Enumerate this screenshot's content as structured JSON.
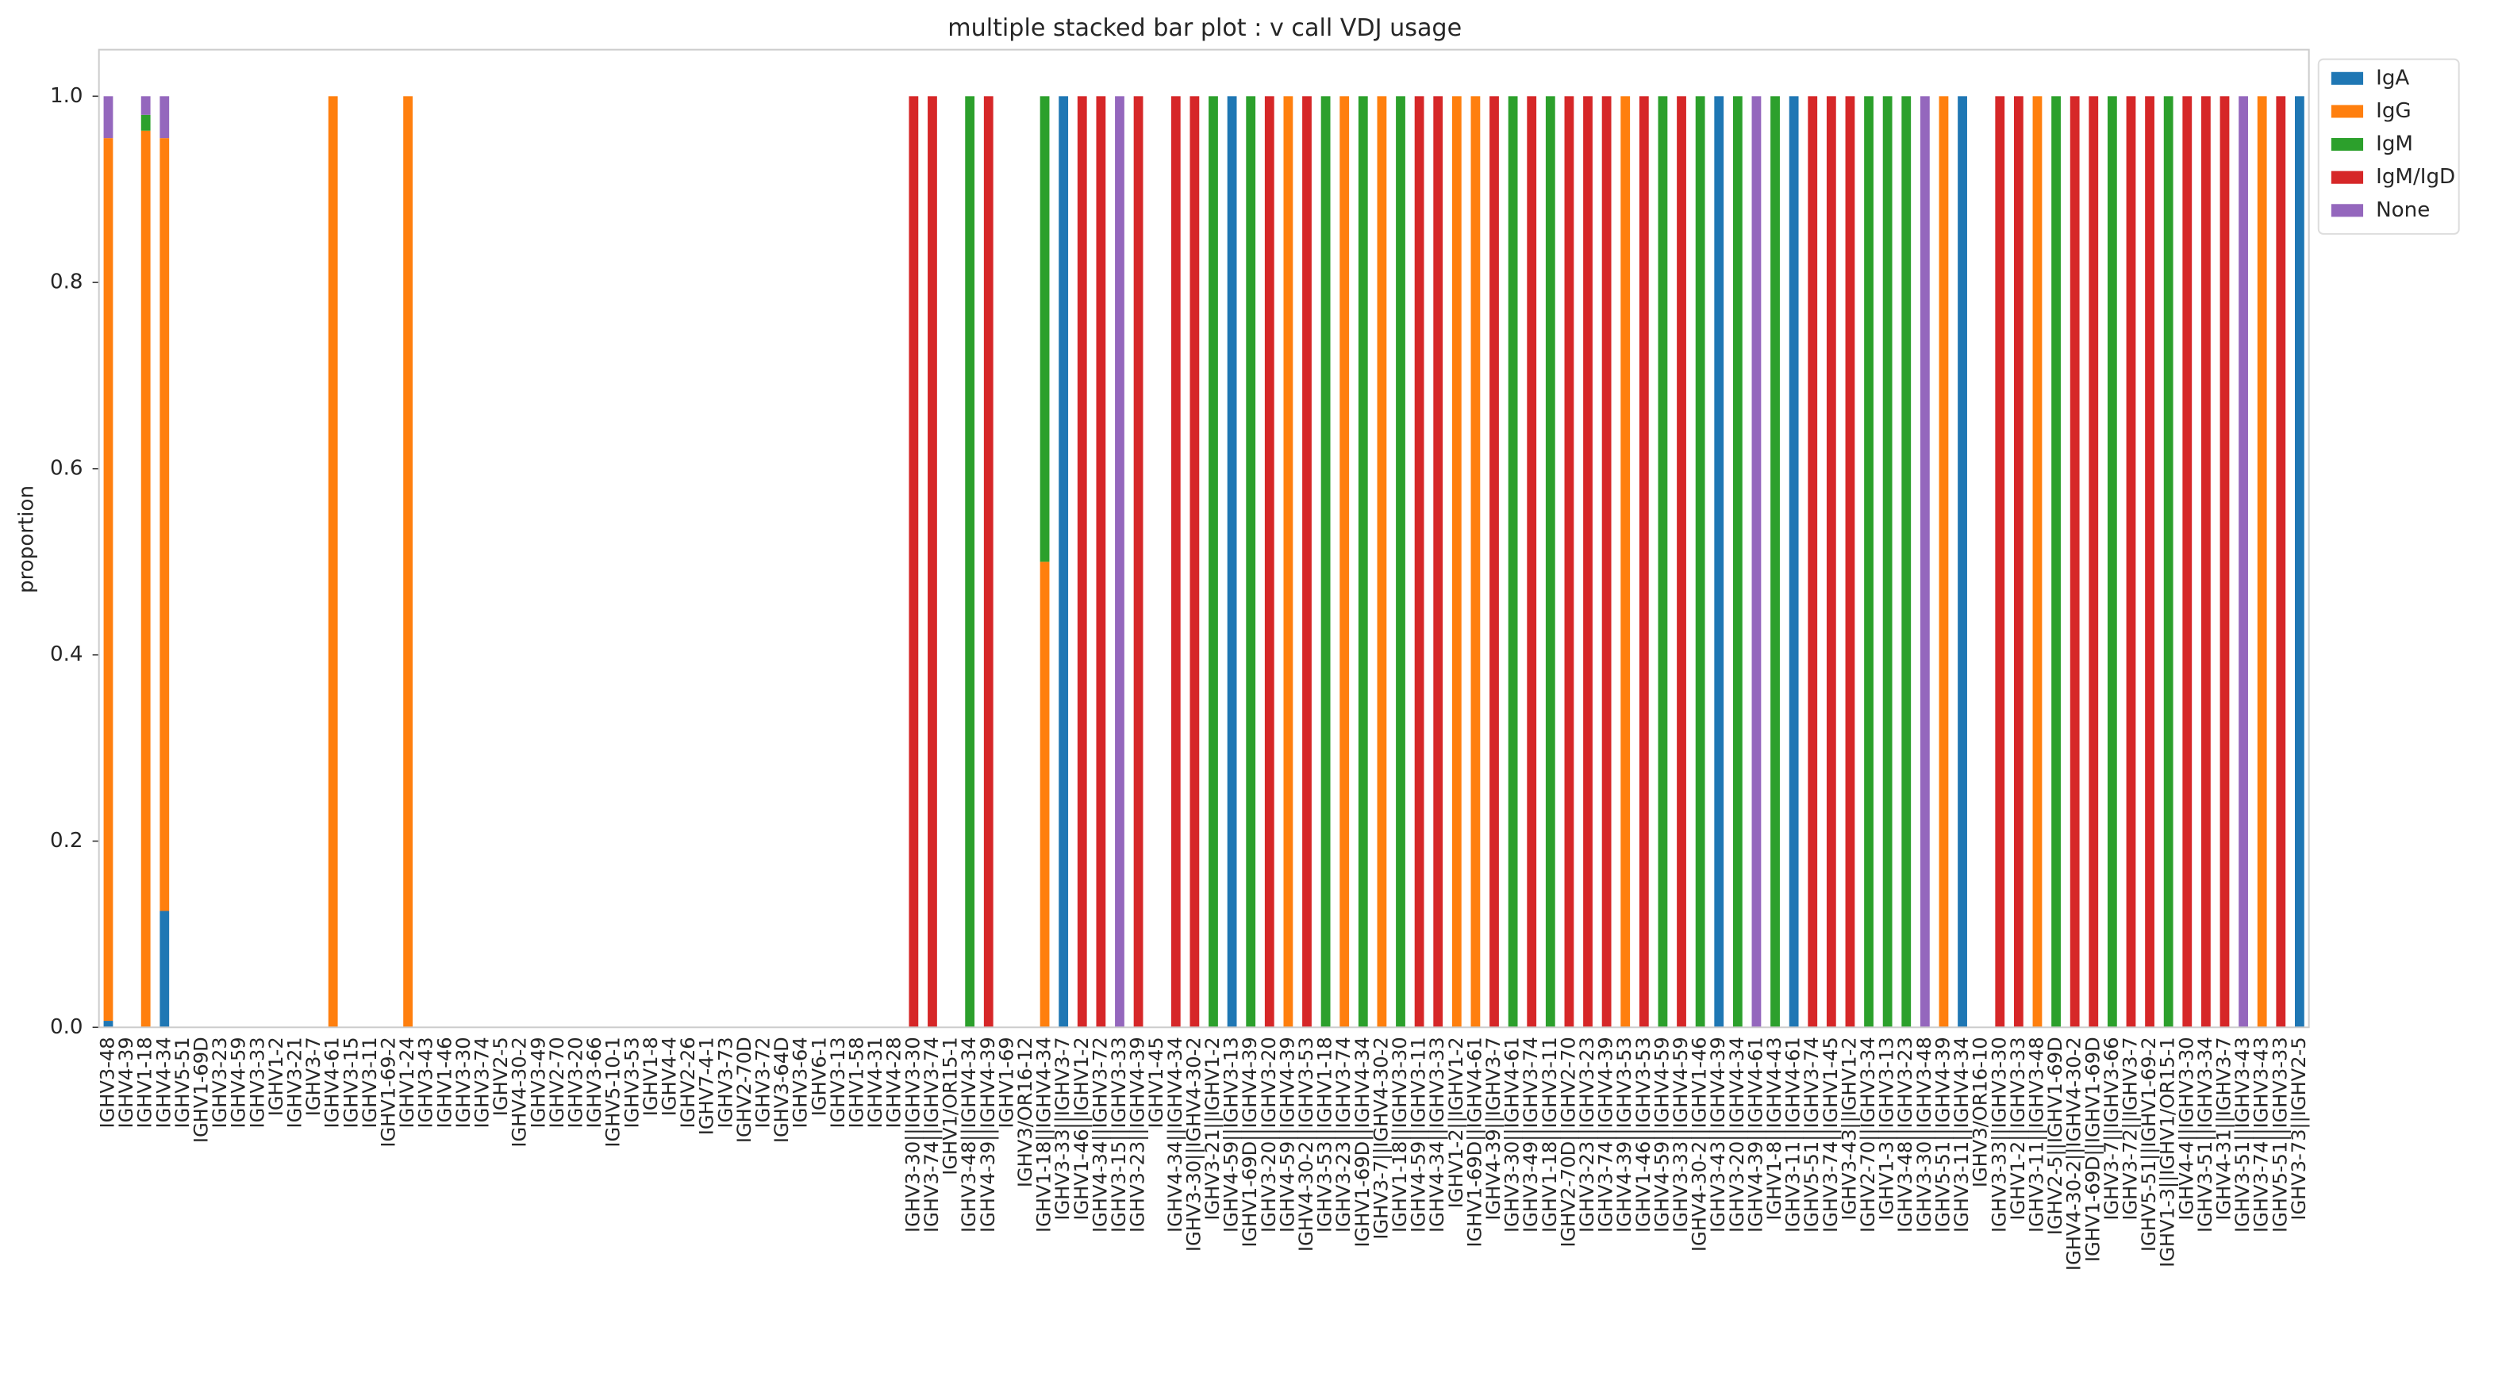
{
  "chart_data": {
    "type": "stacked_bar",
    "title": "multiple stacked bar plot : v call VDJ usage",
    "ylabel": "proportion",
    "ylim": [
      0,
      1.05
    ],
    "yticks": [
      {
        "value": 0,
        "label": "0.0"
      },
      {
        "value": 0.2,
        "label": "0.2"
      },
      {
        "value": 0.4,
        "label": "0.4"
      },
      {
        "value": 0.6,
        "label": "0.6"
      },
      {
        "value": 0.8,
        "label": "0.8"
      },
      {
        "value": 1,
        "label": "1.0"
      }
    ],
    "grid": false,
    "legend": "outside upper right",
    "categories": [
      "IGHV3-48",
      "IGHV4-39",
      "IGHV1-18",
      "IGHV4-34",
      "IGHV5-51",
      "IGHV1-69D",
      "IGHV3-23",
      "IGHV4-59",
      "IGHV3-33",
      "IGHV1-2",
      "IGHV3-21",
      "IGHV3-7",
      "IGHV4-61",
      "IGHV3-15",
      "IGHV3-11",
      "IGHV1-69-2",
      "IGHV1-24",
      "IGHV3-43",
      "IGHV1-46",
      "IGHV3-30",
      "IGHV3-74",
      "IGHV2-5",
      "IGHV4-30-2",
      "IGHV3-49",
      "IGHV2-70",
      "IGHV3-20",
      "IGHV3-66",
      "IGHV5-10-1",
      "IGHV3-53",
      "IGHV1-8",
      "IGHV4-4",
      "IGHV2-26",
      "IGHV7-4-1",
      "IGHV3-73",
      "IGHV2-70D",
      "IGHV3-72",
      "IGHV3-64D",
      "IGHV3-64",
      "IGHV6-1",
      "IGHV3-13",
      "IGHV1-58",
      "IGHV4-31",
      "IGHV4-28",
      "IGHV3-30||IGHV3-30",
      "IGHV3-74||IGHV3-74",
      "IGHV1/OR15-1",
      "IGHV3-48||IGHV4-34",
      "IGHV4-39||IGHV4-39",
      "IGHV1-69",
      "IGHV3/OR16-12",
      "IGHV1-18||IGHV4-34",
      "IGHV3-33||IGHV3-7",
      "IGHV1-46||IGHV1-2",
      "IGHV4-34||IGHV3-72",
      "IGHV3-15||IGHV3-33",
      "IGHV3-23||IGHV4-39",
      "IGHV1-45",
      "IGHV4-34||IGHV4-34",
      "IGHV3-30||IGHV4-30-2",
      "IGHV3-21||IGHV1-2",
      "IGHV4-59||IGHV3-13",
      "IGHV1-69D||IGHV4-39",
      "IGHV3-20||IGHV3-20",
      "IGHV4-59||IGHV4-39",
      "IGHV4-30-2||IGHV3-53",
      "IGHV3-53||IGHV1-18",
      "IGHV3-23||IGHV3-74",
      "IGHV1-69D||IGHV4-34",
      "IGHV3-7||IGHV4-30-2",
      "IGHV1-18||IGHV3-30",
      "IGHV4-59||IGHV3-11",
      "IGHV4-34||IGHV3-33",
      "IGHV1-2||IGHV1-2",
      "IGHV1-69D||IGHV4-61",
      "IGHV4-39||IGHV3-7",
      "IGHV3-30||IGHV4-61",
      "IGHV3-49||IGHV3-74",
      "IGHV1-18||IGHV3-11",
      "IGHV2-70D||IGHV2-70",
      "IGHV3-23||IGHV3-23",
      "IGHV3-74||IGHV4-39",
      "IGHV4-39||IGHV3-53",
      "IGHV1-46||IGHV3-53",
      "IGHV4-59||IGHV4-59",
      "IGHV3-33||IGHV4-59",
      "IGHV4-30-2||IGHV1-46",
      "IGHV3-43||IGHV4-39",
      "IGHV3-20||IGHV4-34",
      "IGHV4-39||IGHV4-61",
      "IGHV1-8||IGHV4-43",
      "IGHV3-11||IGHV4-61",
      "IGHV5-51||IGHV3-74",
      "IGHV3-74||IGHV1-45",
      "IGHV3-43||IGHV1-2",
      "IGHV2-70||IGHV3-34",
      "IGHV1-3||IGHV3-13",
      "IGHV3-48||IGHV3-23",
      "IGHV3-30||IGHV3-48",
      "IGHV5-51||IGHV4-39",
      "IGHV3-11||IGHV4-34",
      "IGHV3/OR16-10",
      "IGHV3-33||IGHV3-30",
      "IGHV1-2||IGHV3-33",
      "IGHV3-11||IGHV3-48",
      "IGHV2-5||IGHV1-69D",
      "IGHV4-30-2||IGHV4-30-2",
      "IGHV1-69D||IGHV1-69D",
      "IGHV3-7||IGHV3-66",
      "IGHV3-72||IGHV3-7",
      "IGHV5-51||IGHV1-69-2",
      "IGHV1-3||IGHV1/OR15-1",
      "IGHV4-4||IGHV3-30",
      "IGHV3-51||IGHV3-34",
      "IGHV4-31||IGHV3-7",
      "IGHV3-51||IGHV3-43",
      "IGHV3-74||IGHV3-43",
      "IGHV5-51||IGHV3-33",
      "IGHV3-73||IGHV2-5"
    ],
    "series": [
      {
        "name": "IgA",
        "color": "#1f77b4",
        "values": [
          0.007,
          0,
          0,
          0.125,
          0,
          0,
          0,
          0,
          0,
          0,
          0,
          0,
          0,
          0,
          0,
          0,
          0,
          0,
          0,
          0,
          0,
          0,
          0,
          0,
          0,
          0,
          0,
          0,
          0,
          0,
          0,
          0,
          0,
          0,
          0,
          0,
          0,
          0,
          0,
          0,
          0,
          0,
          0,
          0,
          0,
          0,
          0,
          0,
          0,
          0,
          0,
          1,
          0,
          0,
          0,
          0,
          0,
          0,
          0,
          0,
          1,
          0,
          0,
          0,
          0,
          0,
          0,
          0,
          0,
          0,
          0,
          0,
          0,
          0,
          0,
          0,
          0,
          0,
          0,
          0,
          0,
          0,
          0,
          0,
          0,
          0,
          1,
          0,
          0,
          0,
          1,
          0,
          0,
          0,
          0,
          0,
          0,
          0,
          0,
          1,
          0,
          0,
          0,
          0,
          0,
          0,
          0,
          0,
          0,
          0,
          0,
          0,
          0,
          0,
          0,
          0,
          0,
          1
        ]
      },
      {
        "name": "IgG",
        "color": "#ff7f0e",
        "values": [
          0.948,
          0,
          0.963,
          0.83,
          0,
          0,
          0,
          0,
          0,
          0,
          0,
          0,
          1,
          0,
          0,
          0,
          1,
          0,
          0,
          0,
          0,
          0,
          0,
          0,
          0,
          0,
          0,
          0,
          0,
          0,
          0,
          0,
          0,
          0,
          0,
          0,
          0,
          0,
          0,
          0,
          0,
          0,
          0,
          0,
          0,
          0,
          0,
          0,
          0,
          0,
          0.5,
          0,
          0,
          0,
          0,
          0,
          0,
          0,
          0,
          0,
          0,
          0,
          0,
          1,
          0,
          0,
          1,
          0,
          1,
          0,
          0,
          0,
          1,
          1,
          0,
          0,
          0,
          0,
          0,
          0,
          0,
          1,
          0,
          0,
          0,
          0,
          0,
          0,
          0,
          0,
          0,
          0,
          0,
          0,
          0,
          0,
          0,
          0,
          1,
          0,
          0,
          0,
          0,
          1,
          0,
          0,
          0,
          0,
          0,
          0,
          0,
          0,
          0,
          0,
          0,
          1,
          0,
          0
        ]
      },
      {
        "name": "IgM",
        "color": "#2ca02c",
        "values": [
          0,
          0,
          0.017,
          0,
          0,
          0,
          0,
          0,
          0,
          0,
          0,
          0,
          0,
          0,
          0,
          0,
          0,
          0,
          0,
          0,
          0,
          0,
          0,
          0,
          0,
          0,
          0,
          0,
          0,
          0,
          0,
          0,
          0,
          0,
          0,
          0,
          0,
          0,
          0,
          0,
          0,
          0,
          0,
          0,
          0,
          0,
          1,
          0,
          0,
          0,
          0.5,
          0,
          0,
          0,
          0,
          0,
          0,
          0,
          0,
          1,
          0,
          1,
          0,
          0,
          0,
          1,
          0,
          1,
          0,
          1,
          0,
          0,
          0,
          0,
          0,
          1,
          0,
          1,
          0,
          0,
          0,
          0,
          0,
          1,
          0,
          1,
          0,
          1,
          0,
          1,
          0,
          0,
          0,
          0,
          1,
          1,
          1,
          0,
          0,
          0,
          0,
          0,
          0,
          0,
          1,
          0,
          0,
          1,
          0,
          0,
          1,
          0,
          0,
          0,
          0,
          0,
          0,
          0
        ]
      },
      {
        "name": "IgM/IgD",
        "color": "#d62728",
        "values": [
          0,
          0,
          0,
          0,
          0,
          0,
          0,
          0,
          0,
          0,
          0,
          0,
          0,
          0,
          0,
          0,
          0,
          0,
          0,
          0,
          0,
          0,
          0,
          0,
          0,
          0,
          0,
          0,
          0,
          0,
          0,
          0,
          0,
          0,
          0,
          0,
          0,
          0,
          0,
          0,
          0,
          0,
          0,
          1,
          1,
          0,
          0,
          1,
          0,
          0,
          0,
          0,
          1,
          1,
          0,
          1,
          0,
          1,
          1,
          0,
          0,
          0,
          1,
          0,
          1,
          0,
          0,
          0,
          0,
          0,
          1,
          1,
          0,
          0,
          1,
          0,
          1,
          0,
          1,
          1,
          1,
          0,
          1,
          0,
          1,
          0,
          0,
          0,
          0,
          0,
          0,
          1,
          1,
          1,
          0,
          0,
          0,
          0,
          0,
          0,
          0,
          1,
          1,
          0,
          0,
          1,
          1,
          0,
          1,
          1,
          0,
          1,
          1,
          1,
          0,
          0,
          1,
          0
        ]
      },
      {
        "name": "None",
        "color": "#9467bd",
        "values": [
          0.045,
          0,
          0.02,
          0.045,
          0,
          0,
          0,
          0,
          0,
          0,
          0,
          0,
          0,
          0,
          0,
          0,
          0,
          0,
          0,
          0,
          0,
          0,
          0,
          0,
          0,
          0,
          0,
          0,
          0,
          0,
          0,
          0,
          0,
          0,
          0,
          0,
          0,
          0,
          0,
          0,
          0,
          0,
          0,
          0,
          0,
          0,
          0,
          0,
          0,
          0,
          0,
          0,
          0,
          0,
          1,
          0,
          0,
          0,
          0,
          0,
          0,
          0,
          0,
          0,
          0,
          0,
          0,
          0,
          0,
          0,
          0,
          0,
          0,
          0,
          0,
          0,
          0,
          0,
          0,
          0,
          0,
          0,
          0,
          0,
          0,
          0,
          0,
          0,
          1,
          0,
          0,
          0,
          0,
          0,
          0,
          0,
          0,
          1,
          0,
          0,
          0,
          0,
          0,
          0,
          0,
          0,
          0,
          0,
          0,
          0,
          0,
          0,
          0,
          0,
          1,
          0,
          0,
          0
        ]
      }
    ]
  }
}
